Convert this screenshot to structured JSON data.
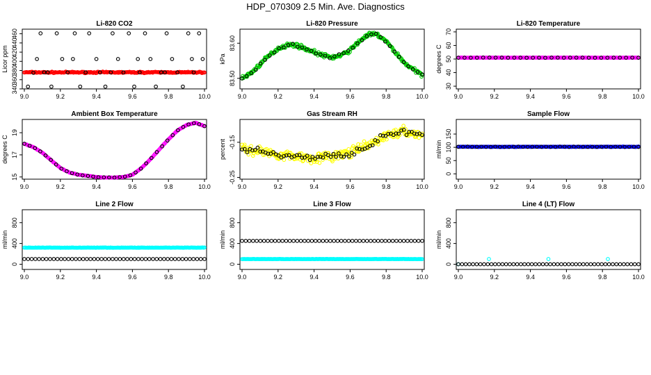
{
  "figure": {
    "title": "HDP_070309  2.5 Min. Ave. Diagnostics"
  },
  "chart_data": [
    {
      "type": "scatter",
      "title": "Li-820 CO2",
      "ylabel": "Licor ppm",
      "xlim": [
        9.0,
        10.0
      ],
      "xticks": [
        "9.0",
        "9.2",
        "9.4",
        "9.6",
        "9.8",
        "10.0"
      ],
      "ylim": [
        340,
        470
      ],
      "yticks": [
        "340",
        "360",
        "380",
        "400",
        "420",
        "440",
        "460"
      ],
      "series": [
        {
          "name": "red",
          "color": "#ff0000",
          "marker": "open",
          "constant": 376,
          "noise": 2,
          "count": 210
        },
        {
          "name": "black",
          "color": "#000000",
          "marker": "open",
          "x": [
            9.02,
            9.05,
            9.07,
            9.09,
            9.11,
            9.15,
            9.18,
            9.21,
            9.24,
            9.28,
            9.31,
            9.34,
            9.36,
            9.4,
            9.42,
            9.45,
            9.49,
            9.52,
            9.55,
            9.58,
            9.61,
            9.64,
            9.67,
            9.7,
            9.73,
            9.76,
            9.79,
            9.82,
            9.85,
            9.88,
            9.91,
            9.94,
            9.97,
            9.99,
            9.13,
            9.27,
            9.48,
            9.63,
            9.78,
            9.93
          ],
          "y": [
            345,
            375,
            405,
            461,
            376,
            345,
            461,
            405,
            376,
            461,
            345,
            376,
            461,
            405,
            376,
            345,
            461,
            405,
            376,
            461,
            345,
            376,
            461,
            405,
            345,
            376,
            461,
            405,
            376,
            345,
            461,
            376,
            461,
            405,
            376,
            405,
            376,
            405,
            376,
            405
          ]
        }
      ]
    },
    {
      "type": "scatter",
      "title": "Li-820 Pressure",
      "ylabel": "kPa",
      "xlim": [
        9.0,
        10.0
      ],
      "xticks": [
        "9.0",
        "9.2",
        "9.4",
        "9.6",
        "9.8",
        "10.0"
      ],
      "ylim": [
        83.47,
        83.64
      ],
      "yticks": [
        "83.50",
        "83.60"
      ],
      "series": [
        {
          "name": "green",
          "color": "#00cc00",
          "marker": "open",
          "trend_x": [
            9.0,
            9.05,
            9.1,
            9.15,
            9.2,
            9.25,
            9.3,
            9.35,
            9.4,
            9.45,
            9.5,
            9.55,
            9.6,
            9.65,
            9.7,
            9.75,
            9.8,
            9.85,
            9.9,
            9.95,
            10.0
          ],
          "trend_y": [
            83.5,
            83.515,
            83.54,
            83.565,
            83.585,
            83.595,
            83.595,
            83.585,
            83.575,
            83.565,
            83.56,
            83.565,
            83.58,
            83.605,
            83.625,
            83.625,
            83.605,
            83.575,
            83.545,
            83.525,
            83.51
          ],
          "noise": 0.008,
          "count": 260
        },
        {
          "name": "black",
          "color": "#000000",
          "marker": "open",
          "count": 40
        }
      ]
    },
    {
      "type": "scatter",
      "title": "Li-820 Temperature",
      "ylabel": "degrees C",
      "xlim": [
        9.0,
        10.0
      ],
      "xticks": [
        "9.0",
        "9.2",
        "9.4",
        "9.6",
        "9.8",
        "10.0"
      ],
      "ylim": [
        28,
        72
      ],
      "yticks": [
        "30",
        "40",
        "50",
        "60",
        "70"
      ],
      "series": [
        {
          "name": "magenta",
          "color": "#ff00ff",
          "marker": "open",
          "constant": 51,
          "noise": 0.1,
          "count": 190
        },
        {
          "name": "black",
          "color": "#000000",
          "marker": "open",
          "constant": 51,
          "noise": 0.1,
          "count": 30
        }
      ]
    },
    {
      "type": "scatter",
      "title": "Ambient Box Temperature",
      "ylabel": "degrees C",
      "xlim": [
        9.0,
        10.0
      ],
      "xticks": [
        "9.0",
        "9.2",
        "9.4",
        "9.6",
        "9.8",
        "10.0"
      ],
      "ylim": [
        14.8,
        20.2
      ],
      "yticks": [
        "15",
        "17",
        "19"
      ],
      "series": [
        {
          "name": "magenta",
          "color": "#ff00ff",
          "marker": "open",
          "trend_x": [
            9.0,
            9.05,
            9.1,
            9.15,
            9.2,
            9.25,
            9.3,
            9.35,
            9.4,
            9.45,
            9.5,
            9.55,
            9.6,
            9.65,
            9.7,
            9.75,
            9.8,
            9.85,
            9.9,
            9.95,
            10.0
          ],
          "trend_y": [
            18.0,
            17.7,
            17.2,
            16.5,
            15.8,
            15.4,
            15.2,
            15.1,
            15.0,
            14.95,
            14.95,
            15.0,
            15.2,
            15.8,
            16.6,
            17.5,
            18.4,
            19.2,
            19.7,
            19.9,
            19.6
          ],
          "noise": 0.03,
          "count": 200
        },
        {
          "name": "black",
          "color": "#000000",
          "marker": "open",
          "count": 35
        }
      ]
    },
    {
      "type": "scatter",
      "title": "Gas Stream RH",
      "ylabel": "percent",
      "xlim": [
        9.0,
        10.0
      ],
      "xticks": [
        "9.0",
        "9.2",
        "9.4",
        "9.6",
        "9.8",
        "10.0"
      ],
      "ylim": [
        -0.255,
        -0.085
      ],
      "yticks": [
        "-0.25",
        "-0.15"
      ],
      "series": [
        {
          "name": "yellow",
          "color": "#ffff00",
          "marker": "open",
          "trend_x": [
            9.0,
            9.1,
            9.2,
            9.3,
            9.4,
            9.5,
            9.6,
            9.7,
            9.8,
            9.9,
            10.0
          ],
          "trend_y": [
            -0.17,
            -0.175,
            -0.185,
            -0.19,
            -0.195,
            -0.19,
            -0.18,
            -0.16,
            -0.13,
            -0.12,
            -0.13
          ],
          "noise": 0.02,
          "count": 280
        },
        {
          "name": "black",
          "color": "#000000",
          "marker": "open",
          "count": 70
        }
      ]
    },
    {
      "type": "scatter",
      "title": "Sample Flow",
      "ylabel": "ml/min",
      "xlim": [
        9.0,
        10.0
      ],
      "xticks": [
        "9.0",
        "9.2",
        "9.4",
        "9.6",
        "9.8",
        "10.0"
      ],
      "ylim": [
        -20,
        205
      ],
      "yticks": [
        "0",
        "50",
        "100",
        "150"
      ],
      "series": [
        {
          "name": "blue",
          "color": "#0000ff",
          "marker": "open",
          "constant": 102,
          "noise": 1,
          "count": 200
        },
        {
          "name": "black",
          "color": "#000000",
          "marker": "open",
          "constant": 102,
          "noise": 1,
          "count": 40
        }
      ]
    },
    {
      "type": "scatter",
      "title": "Line 2 Flow",
      "ylabel": "ml/min",
      "xlim": [
        9.0,
        10.0
      ],
      "xticks": [
        "9.0",
        "9.2",
        "9.4",
        "9.6",
        "9.8",
        "10.0"
      ],
      "ylim": [
        -100,
        1050
      ],
      "yticks": [
        "0",
        "400",
        "800"
      ],
      "series": [
        {
          "name": "cyan",
          "color": "#00ffff",
          "marker": "open",
          "constant": 320,
          "noise": 5,
          "count": 210
        },
        {
          "name": "black",
          "color": "#000000",
          "marker": "open",
          "constant": 100,
          "noise": 0,
          "count": 50
        }
      ]
    },
    {
      "type": "scatter",
      "title": "Line 3 Flow",
      "ylabel": "ml/min",
      "xlim": [
        9.0,
        10.0
      ],
      "xticks": [
        "9.0",
        "9.2",
        "9.4",
        "9.6",
        "9.8",
        "10.0"
      ],
      "ylim": [
        -100,
        1050
      ],
      "yticks": [
        "0",
        "400",
        "800"
      ],
      "series": [
        {
          "name": "cyan",
          "color": "#00ffff",
          "marker": "open",
          "constant": 100,
          "noise": 3,
          "count": 210
        },
        {
          "name": "black",
          "color": "#000000",
          "marker": "open",
          "constant": 450,
          "noise": 0,
          "count": 50
        }
      ]
    },
    {
      "type": "scatter",
      "title": "Line 4 (LT) Flow",
      "ylabel": "ml/min",
      "xlim": [
        9.0,
        10.0
      ],
      "xticks": [
        "9.0",
        "9.2",
        "9.4",
        "9.6",
        "9.8",
        "10.0"
      ],
      "ylim": [
        -100,
        1050
      ],
      "yticks": [
        "0",
        "400",
        "800"
      ],
      "series": [
        {
          "name": "cyan",
          "color": "#00ffff",
          "marker": "open",
          "x": [
            9.0,
            9.17,
            9.5,
            9.83
          ],
          "y": [
            0,
            100,
            100,
            100
          ]
        },
        {
          "name": "black",
          "color": "#000000",
          "marker": "open",
          "constant": 0,
          "noise": 0,
          "count": 50
        }
      ]
    }
  ]
}
